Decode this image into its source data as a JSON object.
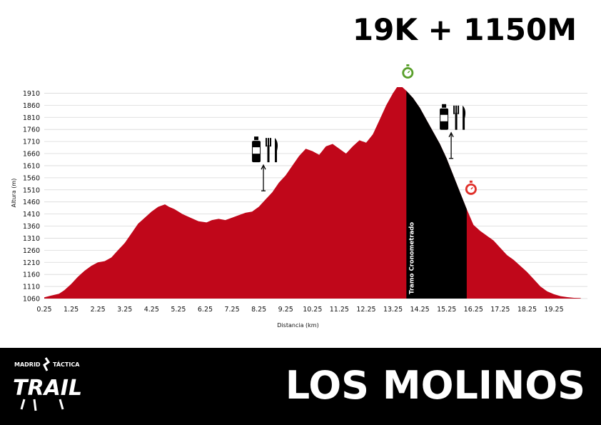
{
  "headline": "19K + 1150M",
  "route_name": "LOS MOLINOS",
  "logo": {
    "top_left": "MADRID",
    "top_right": "TÁCTICA",
    "main": "TRAIL"
  },
  "colors": {
    "profile": "#c0071a",
    "timed_section": "#000000",
    "timer_start": "#5aa02c",
    "timer_end": "#e0302a"
  },
  "icons": [
    "timer-start-icon",
    "timer-end-icon",
    "water-bottle-icon",
    "cutlery-icon",
    "up-arrow-icon"
  ],
  "chart_data": {
    "type": "area",
    "xlabel": "Distancia (km)",
    "ylabel": "Altura (m)",
    "x_ticks": [
      "0.25",
      "1.25",
      "2.25",
      "3.25",
      "4.25",
      "5.25",
      "6.25",
      "7.25",
      "8.25",
      "9.25",
      "10.25",
      "11.25",
      "12.25",
      "13.25",
      "14.25",
      "15.25",
      "16.25",
      "17.25",
      "18.25",
      "19.25"
    ],
    "y_ticks": [
      "1060",
      "1110",
      "1160",
      "1210",
      "1260",
      "1310",
      "1360",
      "1410",
      "1460",
      "1510",
      "1560",
      "1610",
      "1660",
      "1710",
      "1760",
      "1810",
      "1860",
      "1910"
    ],
    "xlim": [
      0.25,
      20.5
    ],
    "ylim": [
      1060,
      1935
    ],
    "grid": true,
    "series": [
      {
        "x": [
          0.25,
          0.5,
          0.8,
          1.0,
          1.25,
          1.5,
          1.75,
          2.0,
          2.25,
          2.5,
          2.75,
          3.0,
          3.25,
          3.5,
          3.75,
          4.0,
          4.25,
          4.5,
          4.75,
          4.9,
          5.1,
          5.4,
          5.7,
          6.0,
          6.3,
          6.5,
          6.75,
          7.0,
          7.25,
          7.5,
          7.75,
          8.0,
          8.25,
          8.5,
          8.75,
          9.0,
          9.25,
          9.5,
          9.75,
          10.0,
          10.25,
          10.5,
          10.75,
          11.0,
          11.25,
          11.5,
          11.75,
          12.0,
          12.25,
          12.5,
          12.75,
          13.0,
          13.25,
          13.4,
          13.6,
          13.75,
          14.0,
          14.25,
          14.5,
          14.75,
          15.0,
          15.25,
          15.5,
          15.75,
          16.0,
          16.25,
          16.5,
          16.75,
          17.0,
          17.25,
          17.5,
          17.75,
          18.0,
          18.25,
          18.5,
          18.75,
          19.0,
          19.25,
          19.5,
          19.75,
          20.0,
          20.25
        ],
        "y": [
          1065,
          1072,
          1080,
          1095,
          1120,
          1150,
          1175,
          1195,
          1210,
          1215,
          1230,
          1260,
          1290,
          1330,
          1370,
          1395,
          1420,
          1440,
          1450,
          1440,
          1430,
          1410,
          1395,
          1380,
          1375,
          1385,
          1390,
          1385,
          1395,
          1405,
          1415,
          1420,
          1440,
          1470,
          1500,
          1540,
          1570,
          1610,
          1650,
          1680,
          1670,
          1655,
          1690,
          1700,
          1680,
          1660,
          1690,
          1715,
          1705,
          1740,
          1800,
          1860,
          1910,
          1935,
          1935,
          1920,
          1890,
          1850,
          1800,
          1750,
          1700,
          1640,
          1570,
          1500,
          1430,
          1365,
          1340,
          1320,
          1300,
          1270,
          1240,
          1220,
          1195,
          1170,
          1140,
          1110,
          1090,
          1078,
          1070,
          1066,
          1063,
          1062
        ]
      }
    ],
    "timed_section": {
      "start_km": 13.75,
      "end_km": 16.0,
      "label": "Tramo Cronometrado"
    },
    "aid_stations": [
      {
        "km": 8.5,
        "icons": [
          "water-bottle-icon",
          "cutlery-icon"
        ]
      },
      {
        "km": 15.5,
        "icons": [
          "water-bottle-icon",
          "cutlery-icon"
        ]
      }
    ],
    "timers": [
      {
        "km": 13.75,
        "kind": "start",
        "icon": "timer-start-icon"
      },
      {
        "km": 16.0,
        "kind": "end",
        "icon": "timer-end-icon"
      }
    ]
  }
}
